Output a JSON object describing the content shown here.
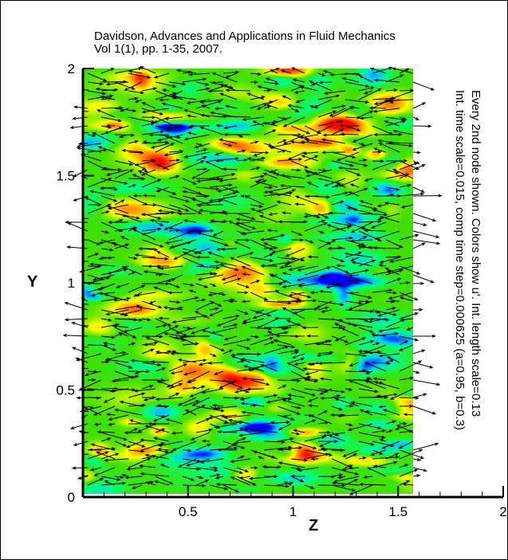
{
  "chart_data": {
    "type": "vector-contour",
    "title_lines": [
      "Davidson, Advances and Applications in Fluid Mechanics",
      "Vol 1(1), pp. 1-35, 2007."
    ],
    "xlabel": "Z",
    "ylabel": "Y",
    "xlim": [
      0,
      2
    ],
    "ylim": [
      0,
      2
    ],
    "field_extent": {
      "z": [
        0,
        1.57
      ],
      "y": [
        0,
        2
      ]
    },
    "x_ticks": [
      {
        "v": 0.5,
        "label": "0.5"
      },
      {
        "v": 1,
        "label": "1"
      },
      {
        "v": 1.5,
        "label": "1.5"
      },
      {
        "v": 2,
        "label": "2"
      }
    ],
    "y_ticks": [
      {
        "v": 0,
        "label": "0"
      },
      {
        "v": 0.5,
        "label": "0.5"
      },
      {
        "v": 1,
        "label": "1"
      },
      {
        "v": 1.5,
        "label": "1.5"
      },
      {
        "v": 2,
        "label": "2"
      }
    ],
    "annotations": [
      "Every 2nd node shown. Colors show u'. Int. length scale=0.13",
      "Int. time scale=0.015, comp time step=0.000625 (a=0.95, b=0.3)"
    ],
    "colormap": [
      "#0000ff",
      "#00c8ff",
      "#00ff80",
      "#40e000",
      "#ffff00",
      "#ff8000",
      "#ff0000"
    ],
    "grid": false
  }
}
